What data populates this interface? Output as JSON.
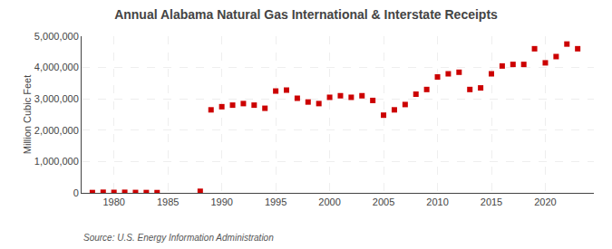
{
  "chart_data": {
    "type": "scatter",
    "title": "Annual Alabama Natural Gas International & Interstate Receipts",
    "ylabel": "Million Cubic Feet",
    "source": "Source: U.S. Energy Information Administration",
    "x": [
      1978,
      1979,
      1980,
      1981,
      1982,
      1983,
      1984,
      1988,
      1989,
      1990,
      1991,
      1992,
      1993,
      1994,
      1995,
      1996,
      1997,
      1998,
      1999,
      2000,
      2001,
      2002,
      2003,
      2004,
      2005,
      2006,
      2007,
      2008,
      2009,
      2010,
      2011,
      2012,
      2013,
      2014,
      2015,
      2016,
      2017,
      2018,
      2019,
      2020,
      2021,
      2022,
      2023
    ],
    "values": [
      10000,
      20000,
      15000,
      18000,
      12000,
      10000,
      8000,
      50000,
      2650000,
      2750000,
      2800000,
      2850000,
      2800000,
      2700000,
      3250000,
      3280000,
      3020000,
      2900000,
      2850000,
      3050000,
      3100000,
      3050000,
      3100000,
      2950000,
      2480000,
      2650000,
      2820000,
      3150000,
      3300000,
      3700000,
      3800000,
      3850000,
      3300000,
      3350000,
      3800000,
      4050000,
      4100000,
      4100000,
      4600000,
      4150000,
      4350000,
      4750000,
      4600000
    ],
    "color": "#cc0000",
    "marker": "square",
    "xlim": [
      1977,
      2024.5
    ],
    "ylim": [
      0,
      5000000
    ],
    "xticks": [
      1980,
      1985,
      1990,
      1995,
      2000,
      2005,
      2010,
      2015,
      2020
    ],
    "yticks": [
      0,
      {
        "value": 1000000,
        "label": "1,000,000"
      },
      {
        "value": 2000000,
        "label": "2,000,000"
      },
      {
        "value": 3000000,
        "label": "3,000,000"
      },
      {
        "value": 4000000,
        "label": "4,000,000"
      },
      {
        "value": 5000000,
        "label": "5,000,000"
      }
    ],
    "grid": true
  }
}
